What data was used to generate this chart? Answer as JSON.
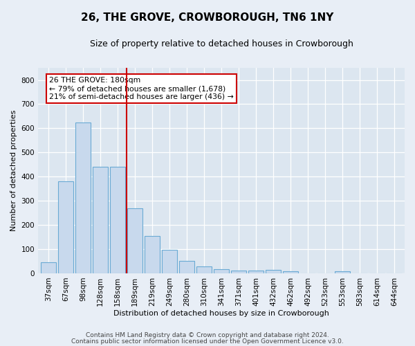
{
  "title": "26, THE GROVE, CROWBOROUGH, TN6 1NY",
  "subtitle": "Size of property relative to detached houses in Crowborough",
  "xlabel": "Distribution of detached houses by size in Crowborough",
  "ylabel": "Number of detached properties",
  "footnote1": "Contains HM Land Registry data © Crown copyright and database right 2024.",
  "footnote2": "Contains public sector information licensed under the Open Government Licence v3.0.",
  "annotation_line1": "26 THE GROVE: 180sqm",
  "annotation_line2": "← 79% of detached houses are smaller (1,678)",
  "annotation_line3": "21% of semi-detached houses are larger (436) →",
  "bar_color": "#c8d9ed",
  "bar_edge_color": "#6aaad4",
  "reference_line_color": "#cc0000",
  "categories": [
    "37sqm",
    "67sqm",
    "98sqm",
    "128sqm",
    "158sqm",
    "189sqm",
    "219sqm",
    "249sqm",
    "280sqm",
    "310sqm",
    "341sqm",
    "371sqm",
    "401sqm",
    "432sqm",
    "462sqm",
    "492sqm",
    "523sqm",
    "553sqm",
    "583sqm",
    "614sqm",
    "644sqm"
  ],
  "values": [
    45,
    380,
    625,
    440,
    440,
    270,
    155,
    97,
    52,
    28,
    18,
    12,
    12,
    15,
    8,
    0,
    0,
    8,
    0,
    0,
    0
  ],
  "ylim": [
    0,
    850
  ],
  "yticks": [
    0,
    100,
    200,
    300,
    400,
    500,
    600,
    700,
    800
  ],
  "background_color": "#e8eef6",
  "plot_bg_color": "#dce6f0",
  "grid_color": "#ffffff",
  "title_fontsize": 11,
  "subtitle_fontsize": 9,
  "axis_label_fontsize": 8,
  "tick_fontsize": 7.5,
  "annotation_fontsize": 7.8,
  "footnote_fontsize": 6.5
}
